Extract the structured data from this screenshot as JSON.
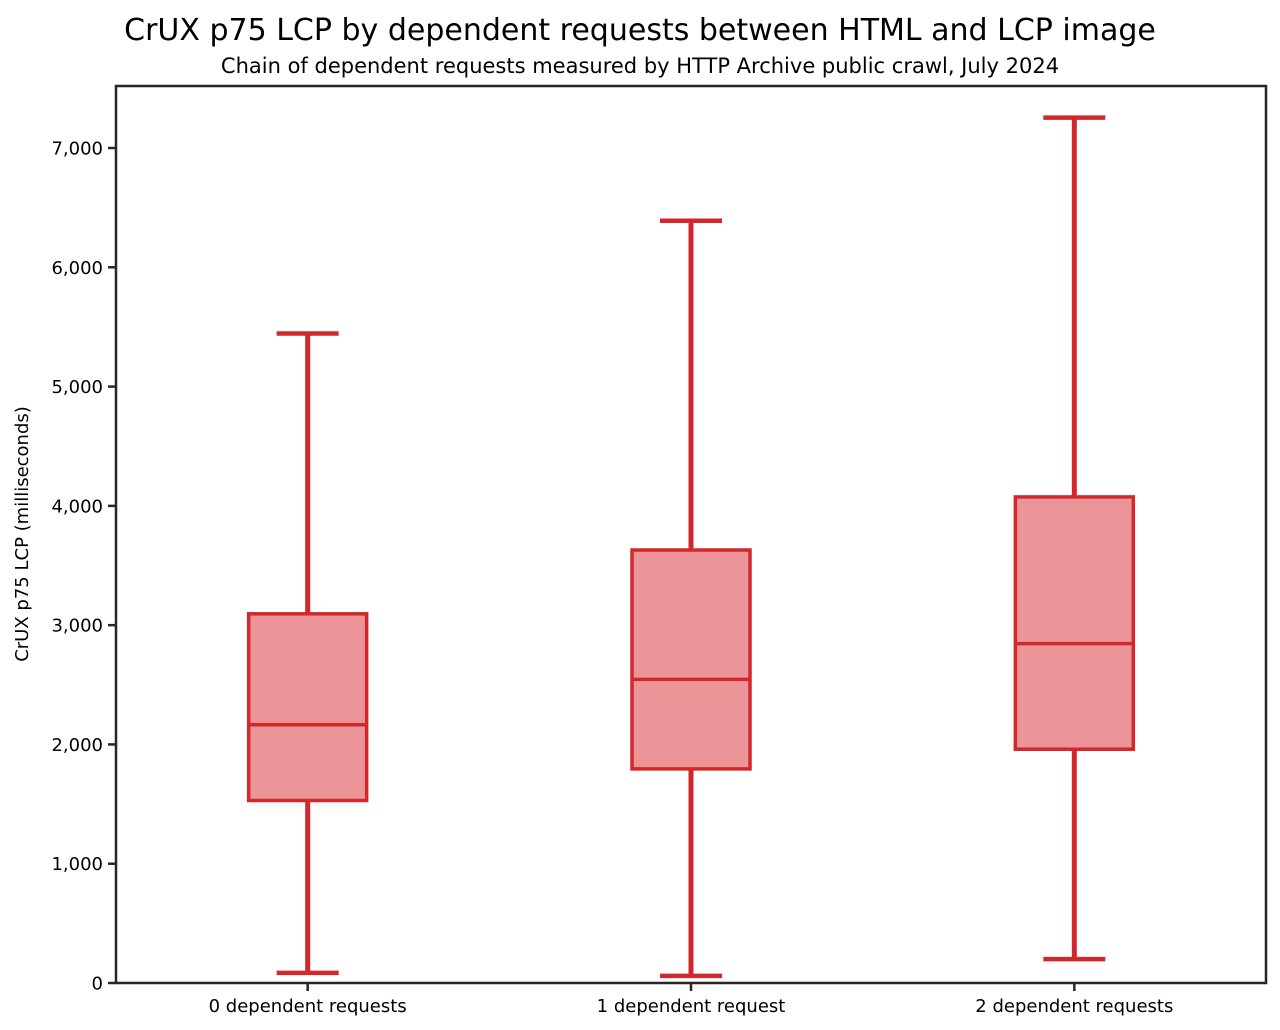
{
  "chart_data": {
    "type": "boxplot",
    "title": "CrUX p75 LCP by dependent requests between HTML and LCP image",
    "subtitle": "Chain of dependent requests measured by HTTP Archive public crawl, July 2024",
    "ylabel": "CrUX p75 LCP (milliseconds)",
    "xlabel": "",
    "categories": [
      "0 dependent requests",
      "1 dependent request",
      "2 dependent requests"
    ],
    "series": [
      {
        "name": "0 dependent requests",
        "whisker_low": 85,
        "q1": 1530,
        "median": 2165,
        "q3": 3095,
        "whisker_high": 5445
      },
      {
        "name": "1 dependent request",
        "whisker_low": 60,
        "q1": 1795,
        "median": 2545,
        "q3": 3630,
        "whisker_high": 6390
      },
      {
        "name": "2 dependent requests",
        "whisker_low": 200,
        "q1": 1960,
        "median": 2845,
        "q3": 4075,
        "whisker_high": 7255
      }
    ],
    "ylim": [
      0,
      7520
    ],
    "yticks": [
      0,
      1000,
      2000,
      3000,
      4000,
      5000,
      6000,
      7000
    ],
    "ytick_labels": [
      "0",
      "1,000",
      "2,000",
      "3,000",
      "4,000",
      "5,000",
      "6,000",
      "7,000"
    ],
    "grid": false,
    "legend": null,
    "colors": {
      "box_line": "#d2282c",
      "box_fill": "#ec9598",
      "axis": "#262626",
      "text": "#000000",
      "background": "#ffffff"
    }
  }
}
